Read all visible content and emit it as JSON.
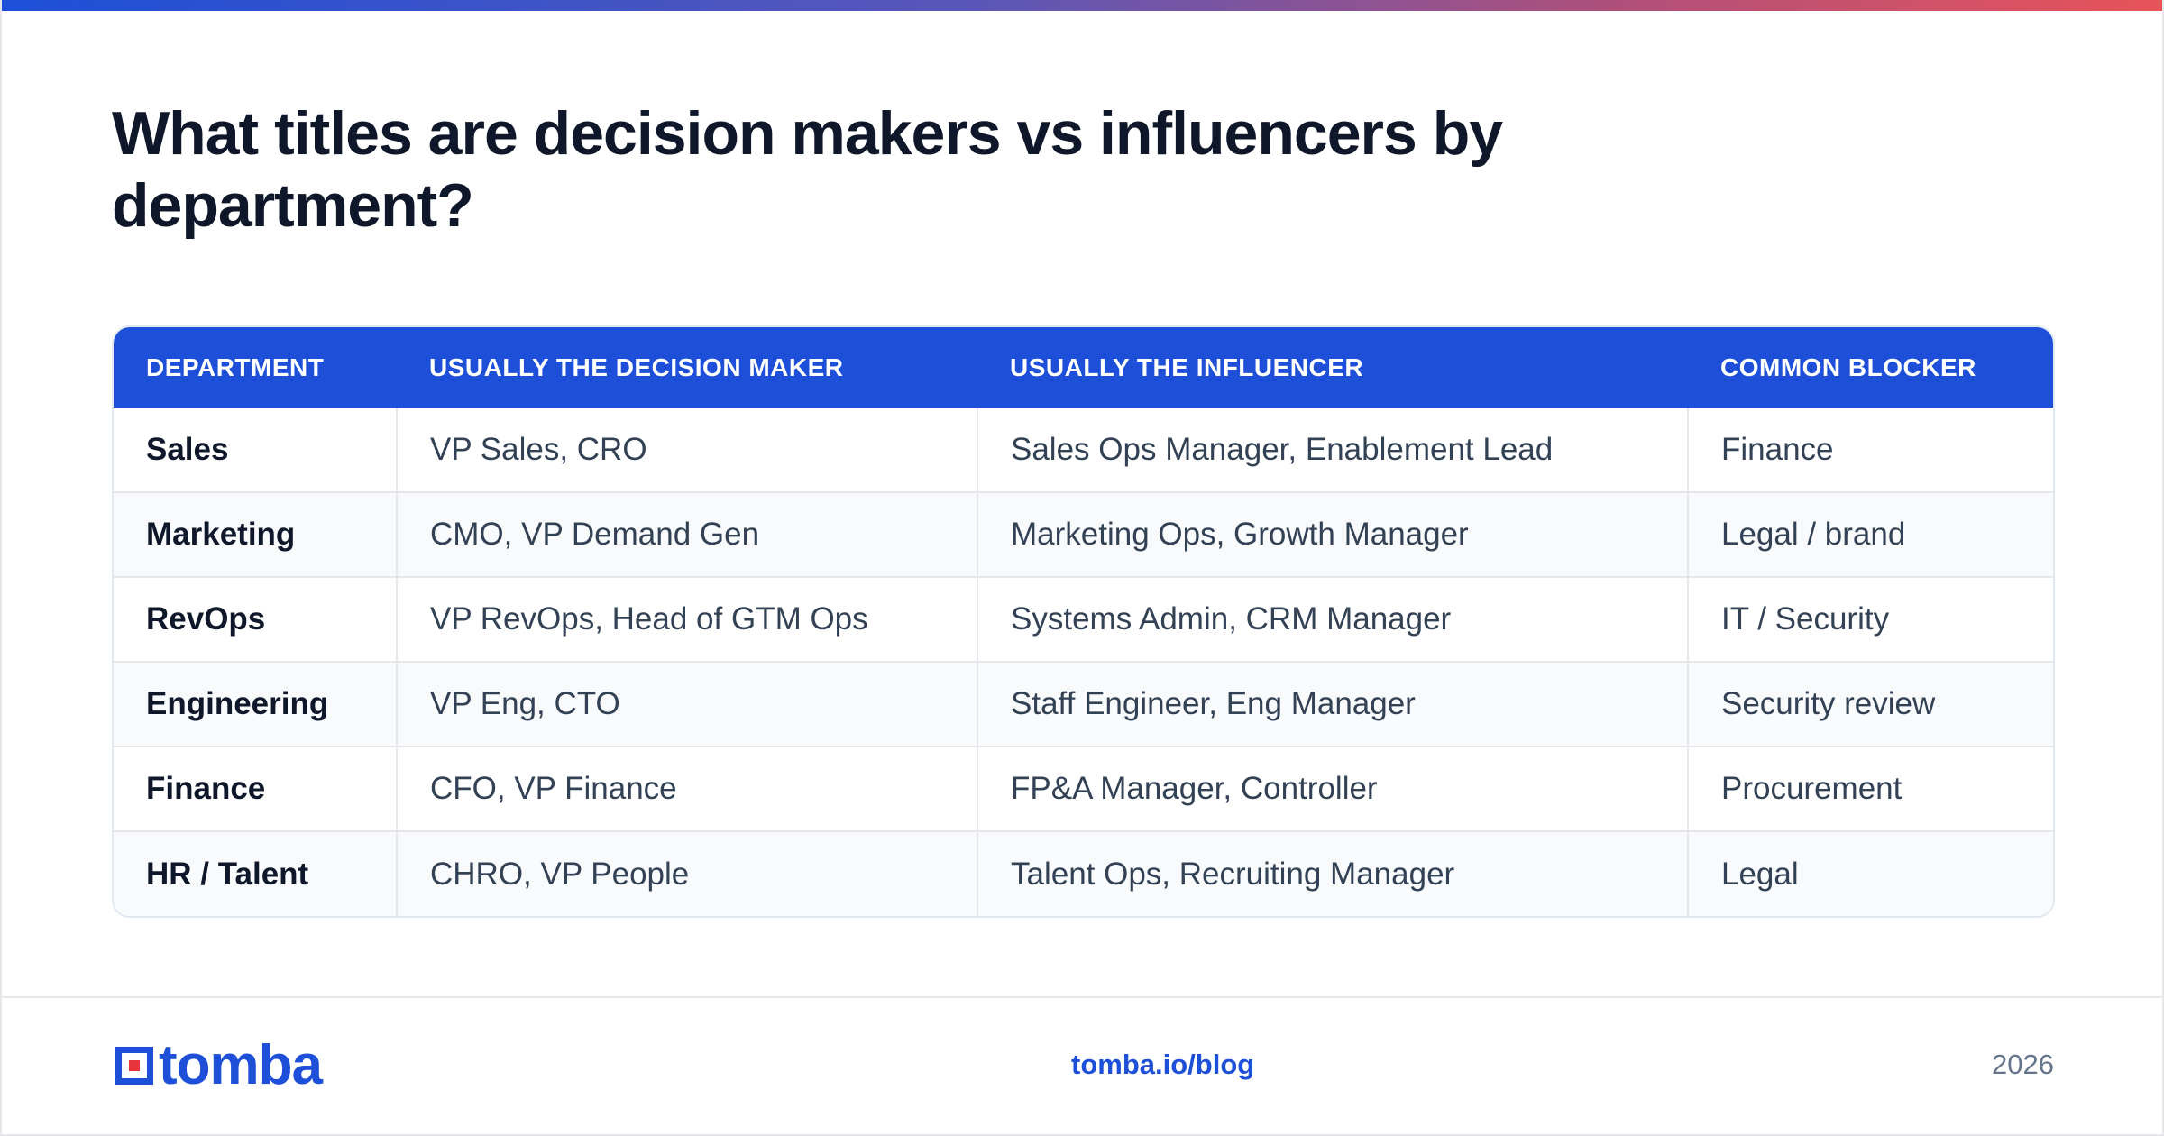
{
  "title": "What titles are decision makers vs influencers by department?",
  "table": {
    "headers": [
      "DEPARTMENT",
      "USUALLY THE DECISION MAKER",
      "USUALLY THE INFLUENCER",
      "COMMON BLOCKER"
    ],
    "rows": [
      [
        "Sales",
        "VP Sales, CRO",
        "Sales Ops Manager, Enablement Lead",
        "Finance"
      ],
      [
        "Marketing",
        "CMO, VP Demand Gen",
        "Marketing Ops, Growth Manager",
        "Legal / brand"
      ],
      [
        "RevOps",
        "VP RevOps, Head of GTM Ops",
        "Systems Admin, CRM Manager",
        "IT / Security"
      ],
      [
        "Engineering",
        "VP Eng, CTO",
        "Staff Engineer, Eng Manager",
        "Security review"
      ],
      [
        "Finance",
        "CFO, VP Finance",
        "FP&A Manager, Controller",
        "Procurement"
      ],
      [
        "HR / Talent",
        "CHRO, VP People",
        "Talent Ops, Recruiting Manager",
        "Legal"
      ]
    ]
  },
  "footer": {
    "logo_text": "tomba",
    "link": "tomba.io/blog",
    "year": "2026"
  },
  "colors": {
    "accent": "#1d4fd8",
    "logo_red": "#e8353b"
  }
}
